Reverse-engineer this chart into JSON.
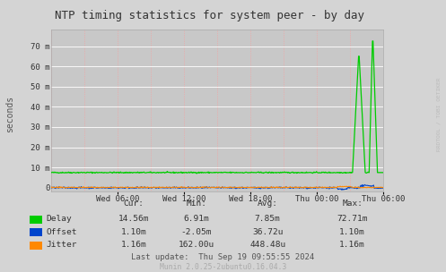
{
  "title": "NTP timing statistics for system peer - by day",
  "ylabel": "seconds",
  "background_color": "#d4d4d4",
  "plot_bg_color": "#c8c8c8",
  "x_labels": [
    "Wed 06:00",
    "Wed 12:00",
    "Wed 18:00",
    "Thu 00:00",
    "Thu 06:00"
  ],
  "y_ticks": [
    0,
    10,
    20,
    30,
    40,
    50,
    60,
    70
  ],
  "y_tick_labels": [
    "0",
    "10 m",
    "20 m",
    "30 m",
    "40 m",
    "50 m",
    "60 m",
    "70 m"
  ],
  "ylim": [
    -2,
    78
  ],
  "delay_color": "#00cc00",
  "offset_color": "#0044cc",
  "jitter_color": "#ff8800",
  "stats_labels": [
    "Delay",
    "Offset",
    "Jitter"
  ],
  "stats_cur": [
    "14.56m",
    "1.10m",
    "1.16m"
  ],
  "stats_min": [
    "6.91m",
    "-2.05m",
    "162.00u"
  ],
  "stats_avg": [
    "7.85m",
    "36.72u",
    "448.48u"
  ],
  "stats_max": [
    "72.71m",
    "1.10m",
    "1.16m"
  ],
  "last_update": "Last update:  Thu Sep 19 09:55:55 2024",
  "footer": "Munin 2.0.25-2ubuntu0.16.04.3",
  "rrdtool_label": "RRDTOOL / TOBI OETIKER",
  "n_points": 600
}
